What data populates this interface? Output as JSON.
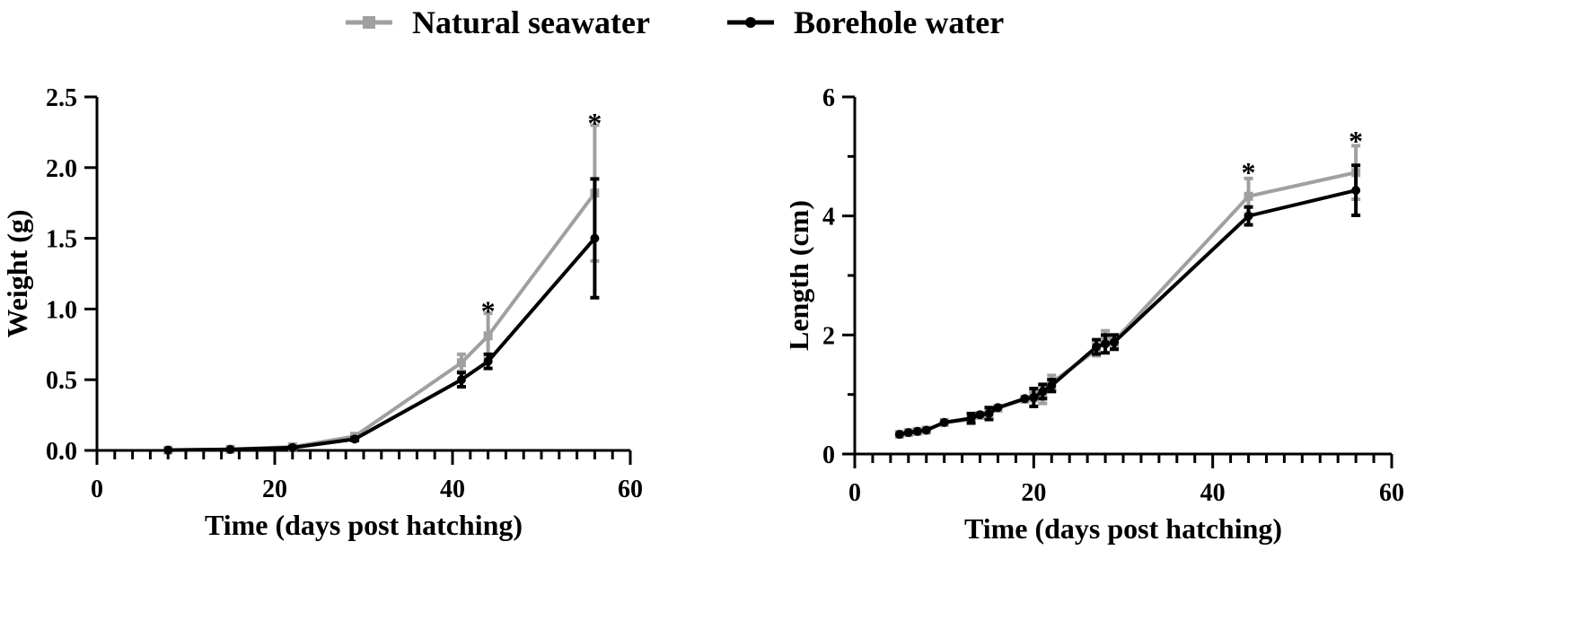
{
  "legend": [
    {
      "name": "Natural seawater",
      "color": "#a0a0a0",
      "marker": "square"
    },
    {
      "name": "Borehole water",
      "color": "#000000",
      "marker": "circle"
    }
  ],
  "chart_data": [
    {
      "type": "line",
      "title": "",
      "xlabel": "Time (days post hatching)",
      "ylabel": "Weight (g)",
      "xlim": [
        0,
        60
      ],
      "ylim": [
        0,
        2.5
      ],
      "xticks": [
        0,
        20,
        40,
        60
      ],
      "yticks": [
        "0.0",
        "0.5",
        "1.0",
        "1.5",
        "2.0",
        "2.5"
      ],
      "grid": false,
      "legend_position": "top-center",
      "series": [
        {
          "name": "Natural seawater",
          "color": "#a0a0a0",
          "marker": "square",
          "x": [
            8,
            15,
            22,
            29,
            41,
            44,
            56
          ],
          "y": [
            0.002,
            0.008,
            0.025,
            0.1,
            0.62,
            0.81,
            1.82
          ],
          "err": [
            0,
            0,
            0.005,
            0.01,
            0.06,
            0.16,
            0.48
          ]
        },
        {
          "name": "Borehole water",
          "color": "#000000",
          "marker": "circle",
          "x": [
            8,
            15,
            22,
            29,
            41,
            44,
            56
          ],
          "y": [
            0.002,
            0.007,
            0.02,
            0.08,
            0.5,
            0.63,
            1.5
          ],
          "err": [
            0,
            0,
            0.005,
            0.01,
            0.05,
            0.05,
            0.42
          ]
        }
      ],
      "annotations": [
        {
          "text": "*",
          "x": 44,
          "y": 0.98
        },
        {
          "text": "*",
          "x": 56,
          "y": 2.31
        }
      ]
    },
    {
      "type": "line",
      "title": "",
      "xlabel": "Time (days post hatching)",
      "ylabel": "Length (cm)",
      "xlim": [
        0,
        60
      ],
      "ylim": [
        0,
        6
      ],
      "xticks": [
        0,
        20,
        40,
        60
      ],
      "yticks": [
        "0",
        "2",
        "4",
        "6"
      ],
      "grid": false,
      "legend_position": "top-center",
      "series": [
        {
          "name": "Natural seawater",
          "color": "#a0a0a0",
          "marker": "square",
          "x": [
            5,
            6,
            7,
            8,
            10,
            13,
            14,
            15,
            16,
            19,
            20,
            21,
            22,
            27,
            28,
            29,
            44,
            56
          ],
          "y": [
            0.33,
            0.36,
            0.38,
            0.4,
            0.53,
            0.58,
            0.65,
            0.7,
            0.77,
            0.92,
            0.98,
            1.0,
            1.2,
            1.75,
            1.95,
            1.9,
            4.33,
            4.73
          ],
          "err": [
            0,
            0,
            0,
            0,
            0,
            0,
            0,
            0.05,
            0,
            0,
            0.08,
            0.15,
            0.12,
            0.1,
            0.12,
            0.1,
            0.3,
            0.45
          ]
        },
        {
          "name": "Borehole water",
          "color": "#000000",
          "marker": "circle",
          "x": [
            5,
            6,
            7,
            8,
            10,
            13,
            14,
            15,
            16,
            19,
            20,
            21,
            22,
            27,
            28,
            29,
            44,
            56
          ],
          "y": [
            0.33,
            0.36,
            0.38,
            0.4,
            0.53,
            0.6,
            0.66,
            0.68,
            0.78,
            0.93,
            0.95,
            1.05,
            1.15,
            1.8,
            1.85,
            1.88,
            4.0,
            4.43
          ],
          "err": [
            0,
            0,
            0,
            0,
            0,
            0.08,
            0,
            0.1,
            0,
            0,
            0.15,
            0.12,
            0.1,
            0.12,
            0.15,
            0.12,
            0.15,
            0.42
          ]
        }
      ],
      "annotations": [
        {
          "text": "*",
          "x": 44,
          "y": 4.72
        },
        {
          "text": "*",
          "x": 56,
          "y": 5.25
        }
      ]
    }
  ]
}
